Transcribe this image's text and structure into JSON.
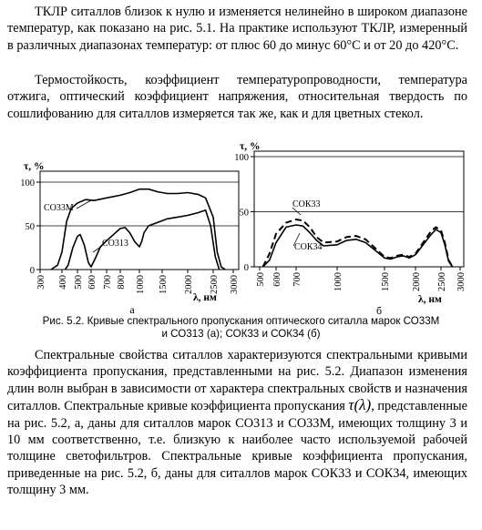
{
  "text": {
    "p1": "ТКЛР ситаллов близок к нулю и изменяется нелинейно в широком диапазоне температур, как показано на рис. 5.1. На практике используют ТКЛР, измеренный в различных диапазонах температур: от плюс 60 до минус 60°С и от 20 до 420°С.",
    "p2": "Термостойкость, коэффициент температуропроводности, температура отжига, оптический коэффициент напряжения, относительная твердость по сошлифованию для ситаллов измеряется так же, как и для цветных стекол.",
    "caption_line1": "Рис. 5.2. Кривые спектрального пропускания оптического ситалла марок СО33М",
    "caption_line2": "и СО313 (а); СОК33 и СОК34 (б)",
    "p3_part1": "Спектральные свойства ситаллов характеризуются спектральными кривыми коэффициента пропускания, представленными на рис. 5.2. Диапазон изменения длин волн выбран в зависимости от характера спектральных свойств и назначения ситаллов. Спектральные кривые коэффициента пропускания",
    "p3_math": "τ(λ)",
    "p3_part2": ", представленные на рис. 5.2, а, даны для ситаллов марок СО313 и СО33М, имеющих толщину 3 и 10 мм соответственно, т.е. близкую к наиболее часто используемой рабочей толщине светофильтров. Спектральные кривые коэффициента пропускания, приведенные на рис. 5.2, б, даны для ситаллов марок СОК33 и СОК34, имеющих толщину 3 мм."
  },
  "chart_data": [
    {
      "type": "line",
      "panel_label": "а",
      "ylabel": "τ, %",
      "xlabel": "λ, нм",
      "ylim": [
        0,
        100
      ],
      "y_ticks": [
        "0",
        "50",
        "100"
      ],
      "x_ticks": [
        "300",
        "400",
        "500",
        "600",
        "700",
        "800",
        "1000",
        "1500",
        "2000",
        "2500",
        "3000"
      ],
      "grid": "horizontal at 50 and 100",
      "series": [
        {
          "name": "СО33М",
          "style": "solid",
          "points": [
            [
              350,
              0
            ],
            [
              380,
              5
            ],
            [
              400,
              20
            ],
            [
              430,
              55
            ],
            [
              460,
              70
            ],
            [
              500,
              76
            ],
            [
              560,
              80
            ],
            [
              620,
              79
            ],
            [
              700,
              82
            ],
            [
              800,
              85
            ],
            [
              900,
              88
            ],
            [
              1000,
              92
            ],
            [
              1200,
              92
            ],
            [
              1400,
              89
            ],
            [
              1600,
              87
            ],
            [
              1800,
              87
            ],
            [
              2000,
              88
            ],
            [
              2200,
              86
            ],
            [
              2350,
              82
            ],
            [
              2500,
              60
            ],
            [
              2600,
              20
            ],
            [
              2700,
              3
            ],
            [
              2800,
              0
            ]
          ]
        },
        {
          "name": "СО313",
          "style": "solid",
          "points": [
            [
              420,
              0
            ],
            [
              440,
              5
            ],
            [
              470,
              25
            ],
            [
              500,
              38
            ],
            [
              520,
              40
            ],
            [
              550,
              28
            ],
            [
              580,
              8
            ],
            [
              600,
              3
            ],
            [
              630,
              14
            ],
            [
              660,
              26
            ],
            [
              700,
              33
            ],
            [
              750,
              40
            ],
            [
              800,
              47
            ],
            [
              850,
              48
            ],
            [
              900,
              42
            ],
            [
              950,
              32
            ],
            [
              1000,
              26
            ],
            [
              1050,
              32
            ],
            [
              1100,
              42
            ],
            [
              1200,
              50
            ],
            [
              1400,
              54
            ],
            [
              1600,
              58
            ],
            [
              1800,
              60
            ],
            [
              2000,
              62
            ],
            [
              2200,
              65
            ],
            [
              2350,
              68
            ],
            [
              2450,
              50
            ],
            [
              2550,
              15
            ],
            [
              2650,
              0
            ]
          ]
        }
      ]
    },
    {
      "type": "line",
      "panel_label": "б",
      "ylabel": "τ, %",
      "xlabel": "λ, нм",
      "ylim": [
        0,
        100
      ],
      "y_ticks": [
        "0",
        "50",
        "100"
      ],
      "x_ticks": [
        "500",
        "600",
        "700",
        "1000",
        "1500",
        "2000",
        "2500",
        "3000"
      ],
      "grid": "horizontal at 50 and 100",
      "series": [
        {
          "name": "СОК33",
          "style": "dashed",
          "points": [
            [
              520,
              0
            ],
            [
              560,
              12
            ],
            [
              600,
              30
            ],
            [
              650,
              40
            ],
            [
              700,
              43
            ],
            [
              750,
              42
            ],
            [
              800,
              36
            ],
            [
              850,
              27
            ],
            [
              900,
              22
            ],
            [
              1000,
              23
            ],
            [
              1100,
              27
            ],
            [
              1200,
              28
            ],
            [
              1300,
              25
            ],
            [
              1400,
              17
            ],
            [
              1500,
              9
            ],
            [
              1600,
              8
            ],
            [
              1700,
              10
            ],
            [
              1800,
              11
            ],
            [
              1900,
              9
            ],
            [
              2000,
              12
            ],
            [
              2150,
              22
            ],
            [
              2300,
              32
            ],
            [
              2400,
              36
            ],
            [
              2500,
              33
            ],
            [
              2600,
              22
            ],
            [
              2700,
              6
            ],
            [
              2800,
              0
            ]
          ]
        },
        {
          "name": "СОК34",
          "style": "solid",
          "points": [
            [
              520,
              0
            ],
            [
              560,
              6
            ],
            [
              600,
              22
            ],
            [
              650,
              36
            ],
            [
              700,
              38
            ],
            [
              750,
              37
            ],
            [
              800,
              31
            ],
            [
              850,
              24
            ],
            [
              900,
              19
            ],
            [
              1000,
              20
            ],
            [
              1100,
              24
            ],
            [
              1200,
              25
            ],
            [
              1300,
              22
            ],
            [
              1400,
              15
            ],
            [
              1500,
              8
            ],
            [
              1600,
              7
            ],
            [
              1700,
              9
            ],
            [
              1800,
              10
            ],
            [
              1900,
              8
            ],
            [
              2000,
              11
            ],
            [
              2150,
              20
            ],
            [
              2300,
              29
            ],
            [
              2400,
              34
            ],
            [
              2500,
              31
            ],
            [
              2600,
              20
            ],
            [
              2700,
              5
            ],
            [
              2800,
              0
            ]
          ]
        }
      ]
    }
  ]
}
